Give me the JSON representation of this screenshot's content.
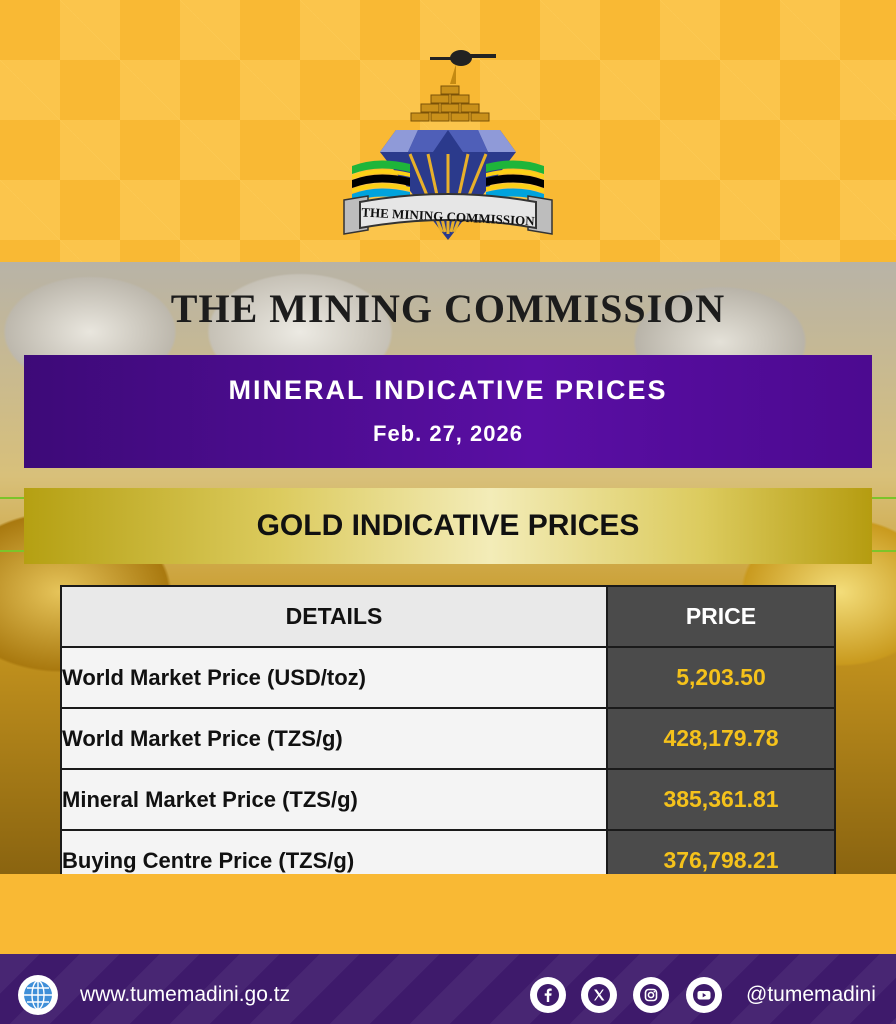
{
  "brand": {
    "logo_text": "THE MINING COMMISSION",
    "title": "THE MINING COMMISSION"
  },
  "banner": {
    "title": "MINERAL INDICATIVE PRICES",
    "date": "Feb. 27, 2026"
  },
  "section": {
    "title": "GOLD INDICATIVE PRICES"
  },
  "table": {
    "headers": [
      "DETAILS",
      "PRICE"
    ],
    "rows": [
      {
        "label": "World Market Price (USD/toz)",
        "value": "5,203.50"
      },
      {
        "label": "World Market Price (TZS/g)",
        "value": "428,179.78"
      },
      {
        "label": "Mineral Market Price (TZS/g)",
        "value": "385,361.81"
      },
      {
        "label": "Buying Centre Price (TZS/g)",
        "value": "376,798.21"
      }
    ]
  },
  "footer": {
    "website": "www.tumemadini.go.tz",
    "handle": "@tumemadini",
    "social_icons": [
      "facebook-icon",
      "x-icon",
      "instagram-icon",
      "youtube-icon"
    ]
  },
  "colors": {
    "gold_background": "#f9b934",
    "purple": "#4b0c8c",
    "price_text": "#f5c21b",
    "footer": "#3e1a6b"
  }
}
